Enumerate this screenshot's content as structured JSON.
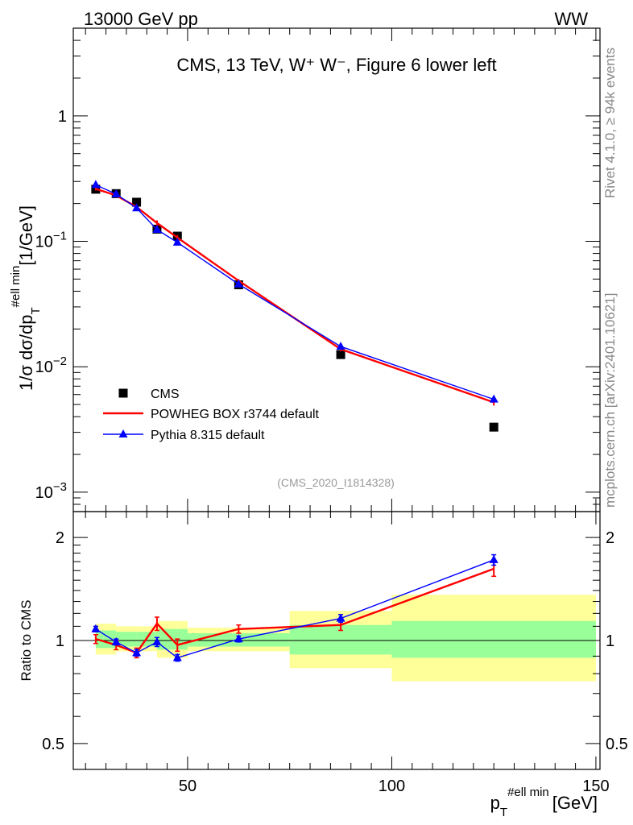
{
  "header": {
    "left": "13000 GeV pp",
    "right": "WW"
  },
  "side_labels": {
    "rivet": "Rivet 4.1.0, ≥ 94k events",
    "mcplots": "mcplots.cern.ch [arXiv:2401.10621]"
  },
  "chart_data": [
    {
      "type": "line",
      "role": "main",
      "title": "CMS, 13 TeV, W⁺ W⁻, Figure 6 lower left",
      "analysis_id": "(CMS_2020_I1814328)",
      "ylabel": "1/σ dσ/dp_T^{#ell min} [1/GeV]",
      "ylabel_parts": {
        "main": "1/σ dσ/dp",
        "sub": "T",
        "sup": "#ell min",
        "unit": "[1/GeV]"
      },
      "yscale": "log",
      "xlim": [
        22,
        151
      ],
      "ylim": [
        0.0007,
        5
      ],
      "yticks": [
        {
          "value": 0.001,
          "base": "10",
          "exp": "−3"
        },
        {
          "value": 0.01,
          "base": "10",
          "exp": "−2"
        },
        {
          "value": 0.1,
          "base": "10",
          "exp": "−1"
        },
        {
          "value": 1,
          "base": "1",
          "exp": ""
        }
      ],
      "legend": {
        "position": "lower-left",
        "entries": [
          "CMS",
          "POWHEG BOX r3744 default",
          "Pythia 8.315 default"
        ]
      },
      "series": [
        {
          "name": "CMS",
          "style": "markers",
          "color": "#000000",
          "x": [
            27.5,
            32.5,
            37.5,
            42.5,
            47.5,
            62.5,
            87.5,
            125
          ],
          "y": [
            0.26,
            0.24,
            0.205,
            0.125,
            0.11,
            0.045,
            0.0125,
            0.0033
          ]
        },
        {
          "name": "POWHEG BOX r3744 default",
          "style": "line",
          "color": "#ff0000",
          "x": [
            27.5,
            32.5,
            37.5,
            42.5,
            47.5,
            62.5,
            87.5,
            125
          ],
          "y": [
            0.262,
            0.232,
            0.188,
            0.14,
            0.107,
            0.0485,
            0.0138,
            0.0052
          ],
          "err": [
            0.008,
            0.006,
            0.006,
            0.007,
            0.005,
            0.0015,
            0.0005,
            0.0003
          ]
        },
        {
          "name": "Pythia 8.315 default",
          "style": "line-markers",
          "color": "#0000ff",
          "x": [
            27.5,
            32.5,
            37.5,
            42.5,
            47.5,
            62.5,
            87.5,
            125
          ],
          "y": [
            0.282,
            0.238,
            0.184,
            0.124,
            0.098,
            0.0455,
            0.0145,
            0.0055
          ],
          "err": [
            0.006,
            0.005,
            0.005,
            0.004,
            0.003,
            0.001,
            0.0004,
            0.0003
          ]
        }
      ]
    },
    {
      "type": "line",
      "role": "ratio",
      "ylabel": "Ratio to CMS",
      "xlabel": "p_T^{#ell min} [GeV]",
      "xlabel_parts": {
        "main": "p",
        "sub": "T",
        "sup": "#ell min",
        "unit": "[GeV]"
      },
      "yscale": "log",
      "xlim": [
        22,
        151
      ],
      "ylim": [
        0.42,
        2.38
      ],
      "xticks": [
        50,
        100,
        150
      ],
      "yticks": [
        0.5,
        1,
        2
      ],
      "bands": [
        {
          "x0": 27.5,
          "x1": 32.5,
          "green": [
            0.95,
            1.07
          ],
          "yellow": [
            0.91,
            1.12
          ]
        },
        {
          "x0": 32.5,
          "x1": 37.5,
          "green": [
            0.96,
            1.06
          ],
          "yellow": [
            0.93,
            1.1
          ]
        },
        {
          "x0": 37.5,
          "x1": 42.5,
          "green": [
            0.96,
            1.06
          ],
          "yellow": [
            0.93,
            1.1
          ]
        },
        {
          "x0": 42.5,
          "x1": 47.5,
          "green": [
            0.94,
            1.08
          ],
          "yellow": [
            0.89,
            1.14
          ]
        },
        {
          "x0": 47.5,
          "x1": 50,
          "green": [
            0.94,
            1.08
          ],
          "yellow": [
            0.89,
            1.14
          ]
        },
        {
          "x0": 50,
          "x1": 75,
          "green": [
            0.96,
            1.05
          ],
          "yellow": [
            0.93,
            1.09
          ]
        },
        {
          "x0": 75,
          "x1": 100,
          "green": [
            0.91,
            1.11
          ],
          "yellow": [
            0.83,
            1.22
          ]
        },
        {
          "x0": 100,
          "x1": 150,
          "green": [
            0.89,
            1.14
          ],
          "yellow": [
            0.76,
            1.36
          ]
        }
      ],
      "series": [
        {
          "name": "POWHEG BOX r3744 default",
          "color": "#ff0000",
          "x": [
            27.5,
            32.5,
            37.5,
            42.5,
            47.5,
            62.5,
            87.5,
            125
          ],
          "y": [
            1.01,
            0.97,
            0.92,
            1.12,
            0.97,
            1.08,
            1.11,
            1.62
          ],
          "err": [
            0.03,
            0.03,
            0.03,
            0.05,
            0.04,
            0.03,
            0.04,
            0.08
          ]
        },
        {
          "name": "Pythia 8.315 default",
          "color": "#0000ff",
          "x": [
            27.5,
            32.5,
            37.5,
            42.5,
            47.5,
            62.5,
            87.5,
            125
          ],
          "y": [
            1.08,
            0.99,
            0.92,
            0.99,
            0.89,
            1.01,
            1.16,
            1.72
          ],
          "err": [
            0.02,
            0.02,
            0.02,
            0.03,
            0.02,
            0.02,
            0.03,
            0.06
          ]
        }
      ]
    }
  ]
}
